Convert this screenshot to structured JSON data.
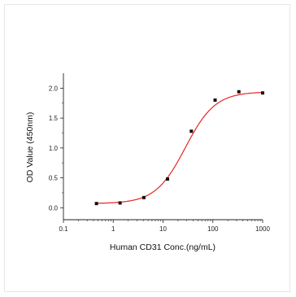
{
  "chart_data": {
    "type": "scatter",
    "xlabel": "Human CD31 Conc.(ng/mL)",
    "ylabel": "OD Value (450nm)",
    "xscale": "log",
    "xlim": [
      0.1,
      1000
    ],
    "ylim": [
      -0.2,
      2.25
    ],
    "x_ticks": [
      0.1,
      1,
      10,
      100,
      1000
    ],
    "x_tick_labels": [
      "0.1",
      "1",
      "10",
      "100",
      "1000"
    ],
    "y_ticks": [
      0.0,
      0.5,
      1.0,
      1.5,
      2.0
    ],
    "y_tick_labels": [
      "0.0",
      "0.5",
      "1.0",
      "1.5",
      "2.0"
    ],
    "grid": false,
    "series": [
      {
        "kind": "points",
        "color": "#111111",
        "x": [
          0.46,
          1.37,
          4.12,
          12.3,
          37.0,
          111,
          333,
          1000
        ],
        "y": [
          0.07,
          0.08,
          0.17,
          0.48,
          1.28,
          1.8,
          1.94,
          1.92
        ]
      },
      {
        "kind": "fit-curve",
        "color": "#e8251f",
        "model": "4PL",
        "bottom": 0.07,
        "top": 1.94,
        "ec50": 28,
        "hill": 1.45
      }
    ]
  }
}
